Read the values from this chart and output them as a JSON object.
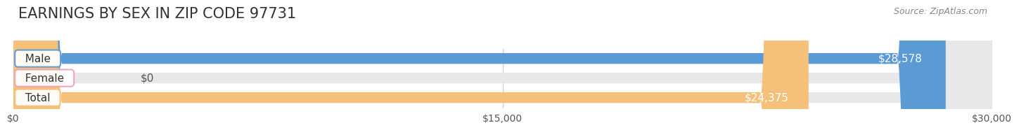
{
  "title": "EARNINGS BY SEX IN ZIP CODE 97731",
  "source_text": "Source: ZipAtlas.com",
  "categories": [
    "Male",
    "Female",
    "Total"
  ],
  "values": [
    28578,
    0,
    24375
  ],
  "max_value": 30000,
  "tick_values": [
    0,
    15000,
    30000
  ],
  "tick_labels": [
    "$0",
    "$15,000",
    "$30,000"
  ],
  "bar_colors": [
    "#5b9bd5",
    "#f4a0b5",
    "#f5c07a"
  ],
  "bar_label_colors": [
    "#ffffff",
    "#555555",
    "#ffffff"
  ],
  "bar_labels": [
    "$28,578",
    "$0",
    "$24,375"
  ],
  "background_color": "#ffffff",
  "bar_bg_color": "#e8e8e8",
  "title_fontsize": 15,
  "label_fontsize": 11,
  "bar_height": 0.55,
  "fig_width": 14.06,
  "fig_height": 1.96
}
